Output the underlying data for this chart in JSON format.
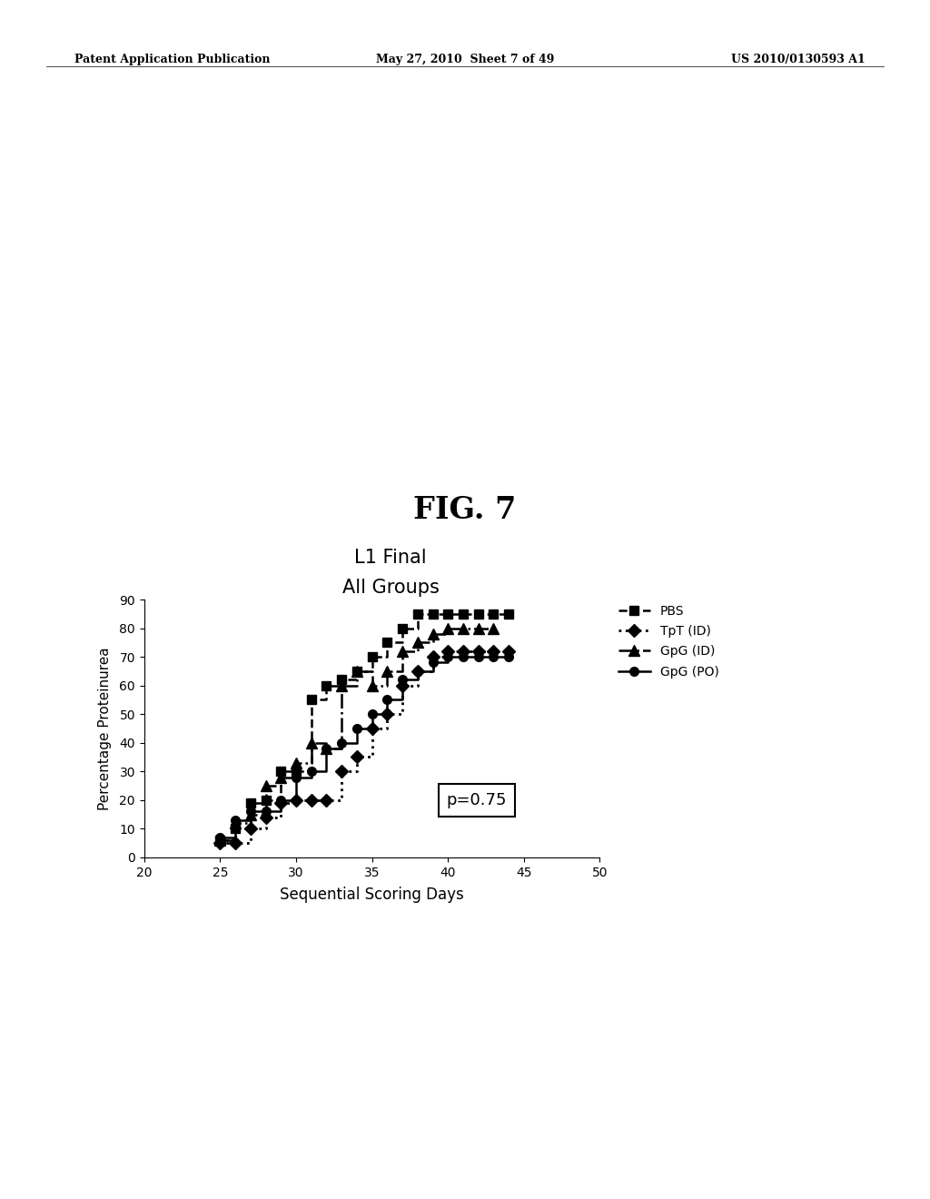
{
  "title_line1": "L1 Final",
  "title_line2": "All Groups",
  "xlabel": "Sequential Scoring Days",
  "ylabel": "Percentage Proteinurea",
  "xlim": [
    20,
    50
  ],
  "ylim": [
    0,
    90
  ],
  "xticks": [
    20,
    25,
    30,
    35,
    40,
    45,
    50
  ],
  "yticks": [
    0,
    10,
    20,
    30,
    40,
    50,
    60,
    70,
    80,
    90
  ],
  "annotation": "p=0.75",
  "header_left": "Patent Application Publication",
  "header_center": "May 27, 2010  Sheet 7 of 49",
  "header_right": "US 2010/0130593 A1",
  "fig_label": "FIG. 7",
  "pbs": {
    "x": [
      25,
      26,
      27,
      28,
      29,
      30,
      31,
      32,
      33,
      34,
      35,
      36,
      37,
      38,
      39,
      40,
      41,
      42,
      43,
      44
    ],
    "y": [
      6,
      10,
      19,
      20,
      30,
      30,
      55,
      60,
      62,
      65,
      70,
      75,
      80,
      85,
      85,
      85,
      85,
      85,
      85,
      85
    ],
    "label": "PBS",
    "color": "#000000",
    "linestyle": "--",
    "marker": "s",
    "linewidth": 1.8,
    "markersize": 7
  },
  "tpt": {
    "x": [
      25,
      26,
      27,
      28,
      29,
      30,
      31,
      32,
      33,
      34,
      35,
      36,
      37,
      38,
      39,
      40,
      41,
      42,
      43,
      44
    ],
    "y": [
      5,
      5,
      10,
      14,
      19,
      20,
      20,
      20,
      30,
      35,
      45,
      50,
      60,
      65,
      70,
      72,
      72,
      72,
      72,
      72
    ],
    "label": "TpT (ID)",
    "color": "#000000",
    "linestyle": ":",
    "marker": "D",
    "linewidth": 2.0,
    "markersize": 7
  },
  "gpg_id": {
    "x": [
      25,
      26,
      27,
      28,
      29,
      30,
      31,
      32,
      33,
      34,
      35,
      36,
      37,
      38,
      39,
      40,
      41,
      42,
      43
    ],
    "y": [
      6,
      12,
      15,
      25,
      28,
      33,
      40,
      38,
      60,
      65,
      60,
      65,
      72,
      75,
      78,
      80,
      80,
      80,
      80
    ],
    "label": "GpG (ID)",
    "color": "#000000",
    "linestyle": "-.",
    "marker": "^",
    "linewidth": 1.8,
    "markersize": 8
  },
  "gpg_po": {
    "x": [
      25,
      26,
      27,
      28,
      29,
      30,
      31,
      32,
      33,
      34,
      35,
      36,
      37,
      38,
      39,
      40,
      41,
      42,
      43,
      44
    ],
    "y": [
      7,
      13,
      16,
      16,
      20,
      28,
      30,
      38,
      40,
      45,
      50,
      55,
      62,
      65,
      68,
      70,
      70,
      70,
      70,
      70
    ],
    "label": "GpG (PO)",
    "color": "#000000",
    "linestyle": "-",
    "marker": "o",
    "linewidth": 1.8,
    "markersize": 7
  }
}
